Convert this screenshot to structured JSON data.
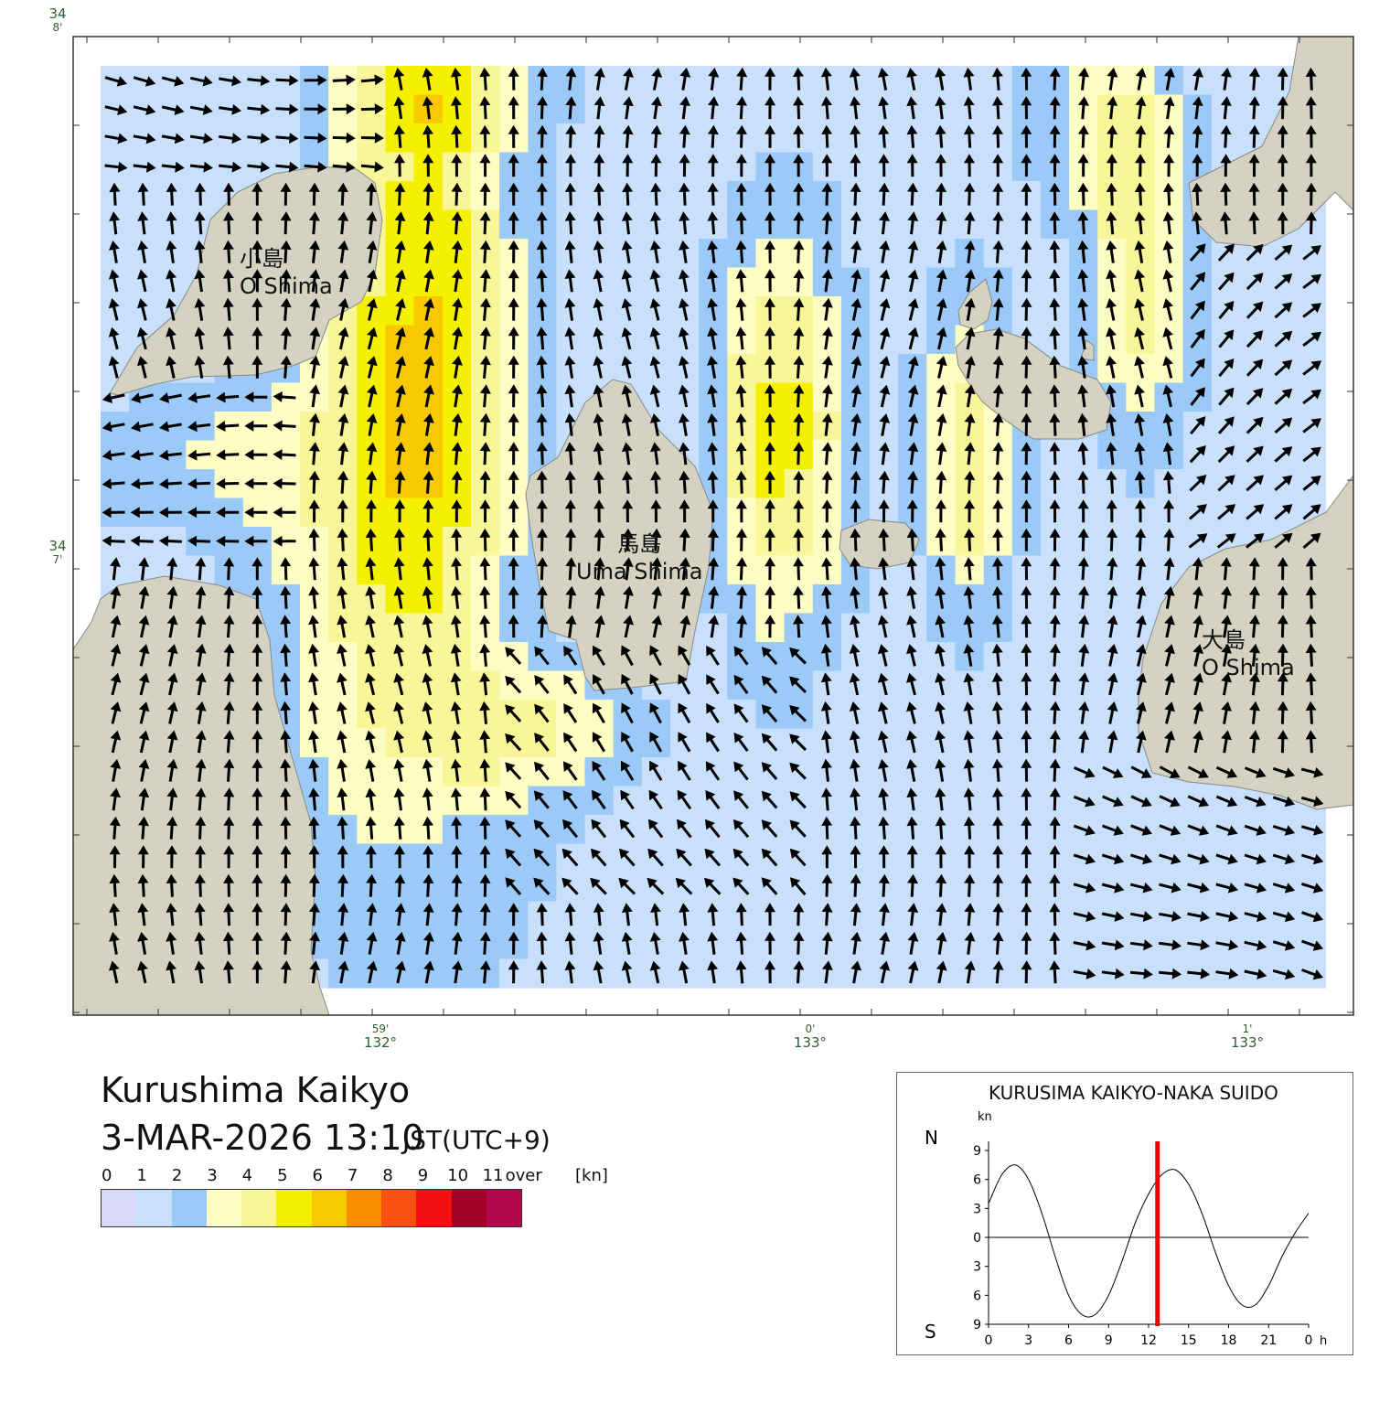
{
  "map": {
    "title": "Kurushima Kaikyo",
    "datetime": "3-MAR-2026 13:10",
    "timezone": "JST(UTC+9)",
    "lat_labels": [
      {
        "deg": "34",
        "min": "8'"
      },
      {
        "deg": "34",
        "min": "7'"
      }
    ],
    "lon_labels": [
      {
        "min": "59'",
        "deg": "132°"
      },
      {
        "min": "0'",
        "deg": "133°"
      },
      {
        "min": "1'",
        "deg": "133°"
      }
    ],
    "islands": [
      {
        "jp": "小島",
        "en": "O Shima"
      },
      {
        "jp": "馬島",
        "en": "Uma Shima"
      },
      {
        "jp": "大島",
        "en": "O Shima"
      }
    ],
    "colors": {
      "land": "#d4d3c2",
      "water_bg": "#d8d8f8",
      "arrow": "#000000",
      "frame": "#333333"
    }
  },
  "legend": {
    "ticks": [
      "0",
      "1",
      "2",
      "3",
      "4",
      "5",
      "6",
      "7",
      "8",
      "9",
      "10",
      "11",
      "over",
      "[kn]"
    ],
    "colors": [
      "#d8d8f8",
      "#c8e0fc",
      "#9ccaf8",
      "#fdfdc4",
      "#f9f69a",
      "#f5f000",
      "#f8c800",
      "#fa8c00",
      "#f85010",
      "#f41010",
      "#a00028",
      "#b0084a"
    ]
  },
  "tide_chart": {
    "title": "KURUSIMA KAIKYO-NAKA SUIDO",
    "unit": "kn",
    "north_label": "N",
    "south_label": "S",
    "x_ticks": [
      "0",
      "3",
      "6",
      "9",
      "12",
      "15",
      "18",
      "21",
      "0"
    ],
    "x_unit": "h",
    "y_ticks": [
      "9",
      "6",
      "3",
      "0",
      "3",
      "6",
      "9"
    ],
    "current_time_hours": 12.67,
    "marker_color": "#ee0000",
    "chart_data": {
      "type": "line",
      "x_label": "h",
      "y_label": "kn",
      "xlim": [
        0,
        24
      ],
      "ylim": [
        -9,
        9
      ],
      "x": [
        0,
        1,
        2,
        3,
        4,
        5,
        6,
        7,
        8,
        9,
        10,
        11,
        12,
        13,
        14,
        15,
        16,
        17,
        18,
        19,
        20,
        21,
        22,
        23,
        24
      ],
      "y": [
        3.5,
        6.5,
        7.5,
        6.0,
        2.5,
        -2.0,
        -6.0,
        -8.0,
        -8.0,
        -6.0,
        -2.5,
        1.5,
        4.5,
        6.5,
        7.0,
        5.5,
        2.5,
        -1.5,
        -5.0,
        -7.0,
        -7.0,
        -5.0,
        -2.0,
        0.5,
        2.5
      ]
    }
  }
}
